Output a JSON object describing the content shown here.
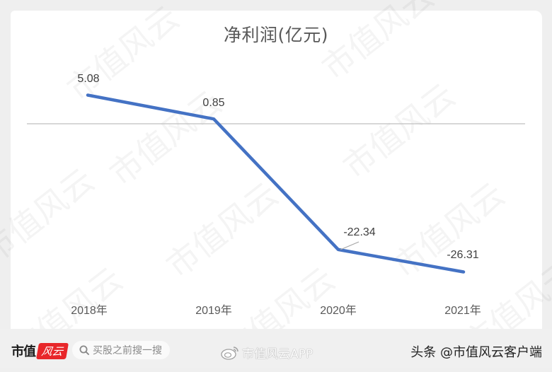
{
  "chart_data": {
    "type": "line",
    "title": "净利润(亿元)",
    "categories": [
      "2018年",
      "2019年",
      "2020年",
      "2021年"
    ],
    "series": [
      {
        "name": "净利润(亿元)",
        "values": [
          5.08,
          0.85,
          -22.34,
          -26.31
        ],
        "color": "#4472c4"
      }
    ],
    "data_labels": [
      "5.08",
      "0.85",
      "-22.34",
      "-26.31"
    ],
    "xlabel": "",
    "ylabel": "",
    "ylim": [
      -30,
      8
    ],
    "grid": false,
    "zero_line": true,
    "legend": "none"
  },
  "watermark": "市值风云",
  "footer": {
    "logo_text": "市值",
    "logo_badge": "风云",
    "search_placeholder": "买股之前搜一搜",
    "weibo_label": "市值风云APP",
    "toutiao_label": "头条 @市值风云客户端"
  },
  "colors": {
    "line": "#4472c4",
    "zero_line": "#bfbfbf",
    "label_text": "#404040",
    "logo_red": "#e8262a"
  }
}
